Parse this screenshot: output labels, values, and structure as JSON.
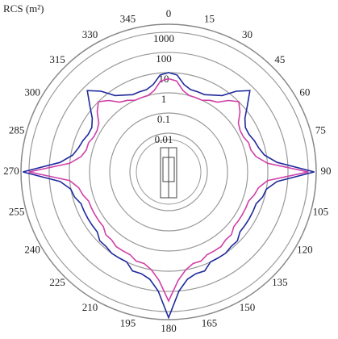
{
  "chart_data": {
    "type": "polar",
    "radial_label": "RCS (m²)",
    "rscale": "log",
    "rlim": [
      0.001,
      2500
    ],
    "rticks": [
      {
        "value": 0.01,
        "label": "0.01"
      },
      {
        "value": 0.1,
        "label": "0.1"
      },
      1,
      10,
      100,
      1000
    ],
    "thetaticks": [
      0,
      15,
      30,
      45,
      60,
      75,
      90,
      105,
      120,
      135,
      150,
      165,
      180,
      195,
      210,
      225,
      240,
      255,
      270,
      285,
      300,
      315,
      330,
      345
    ],
    "theta": [
      0,
      5,
      10,
      15,
      20,
      25,
      30,
      35,
      40,
      45,
      50,
      55,
      60,
      65,
      70,
      75,
      80,
      85,
      90,
      95,
      100,
      105,
      110,
      115,
      120,
      125,
      130,
      135,
      140,
      145,
      150,
      155,
      160,
      165,
      170,
      175,
      180,
      185,
      190,
      195,
      200,
      205,
      210,
      215,
      220,
      225,
      230,
      235,
      240,
      245,
      250,
      255,
      260,
      265,
      270,
      275,
      280,
      285,
      290,
      295,
      300,
      305,
      310,
      315,
      320,
      325,
      330,
      335,
      340,
      345,
      350,
      355
    ],
    "series": [
      {
        "color": "#1f2a9c",
        "values": [
          10,
          8,
          3,
          2,
          2,
          2,
          3,
          5,
          20,
          60,
          15,
          5,
          3,
          3,
          4,
          5,
          8,
          30,
          2000,
          30,
          10,
          8,
          5,
          5,
          5,
          5,
          5,
          8,
          8,
          10,
          10,
          10,
          20,
          20,
          30,
          100,
          2000,
          100,
          30,
          20,
          20,
          10,
          10,
          10,
          8,
          8,
          5,
          5,
          5,
          5,
          5,
          8,
          10,
          30,
          2000,
          30,
          8,
          5,
          4,
          3,
          3,
          5,
          15,
          60,
          20,
          5,
          3,
          2,
          2,
          2,
          3,
          8
        ]
      },
      {
        "color": "#d040a8",
        "values": [
          5,
          4,
          1.5,
          1,
          1,
          1,
          1.5,
          2,
          5,
          10,
          5,
          2,
          1.5,
          1.5,
          2,
          2,
          3,
          10,
          1000,
          10,
          4,
          3,
          2,
          2,
          2,
          2,
          2,
          3,
          3,
          4,
          4,
          4,
          6,
          6,
          10,
          30,
          300,
          30,
          10,
          6,
          6,
          4,
          4,
          4,
          3,
          3,
          2,
          2,
          2,
          2,
          2,
          3,
          4,
          10,
          1000,
          10,
          3,
          2,
          2,
          1.5,
          1.5,
          2,
          5,
          10,
          5,
          2,
          1.5,
          1,
          1,
          1,
          1.5,
          4
        ]
      }
    ]
  }
}
